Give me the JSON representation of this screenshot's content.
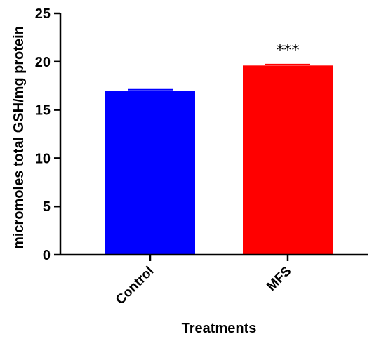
{
  "chart_data": {
    "type": "bar",
    "categories": [
      "Control",
      "MFS"
    ],
    "values": [
      17.0,
      19.6
    ],
    "errors": [
      0.1,
      0.1
    ],
    "colors": [
      "#0000ff",
      "#ff0000"
    ],
    "annotations": [
      "",
      "***"
    ],
    "xlabel": "Treatments",
    "ylabel": "micromoles total GSH/mg protein",
    "ylim": [
      0,
      25
    ],
    "yticks": [
      0,
      5,
      10,
      15,
      20,
      25
    ],
    "grid": false
  }
}
